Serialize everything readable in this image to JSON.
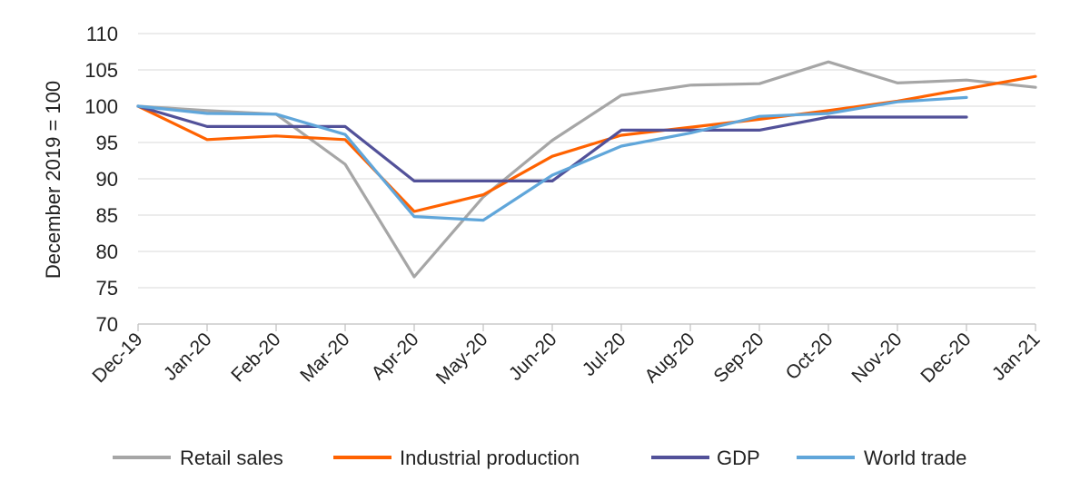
{
  "chart_data": {
    "type": "line",
    "title": "",
    "xlabel": "",
    "ylabel": "December 2019 = 100",
    "ylim": [
      70,
      110
    ],
    "yticks": [
      70,
      75,
      80,
      85,
      90,
      95,
      100,
      105,
      110
    ],
    "grid": true,
    "legend_position": "bottom",
    "categories": [
      "Dec-19",
      "Jan-20",
      "Feb-20",
      "Mar-20",
      "Apr-20",
      "May-20",
      "Jun-20",
      "Jul-20",
      "Aug-20",
      "Sep-20",
      "Oct-20",
      "Nov-20",
      "Dec-20",
      "Jan-21"
    ],
    "series": [
      {
        "name": "Retail sales",
        "color": "#a6a6a6",
        "values": [
          100,
          99.4,
          98.9,
          92,
          76.5,
          87.5,
          95.3,
          101.5,
          102.9,
          103.1,
          106.1,
          103.2,
          103.6,
          102.6
        ]
      },
      {
        "name": "Industrial production",
        "color": "#ff6200",
        "values": [
          100,
          95.4,
          95.9,
          95.4,
          85.5,
          87.8,
          93.1,
          96,
          97.1,
          98.2,
          99.4,
          100.7,
          102.4,
          104.1
        ]
      },
      {
        "name": "GDP",
        "color": "#525199",
        "values": [
          100,
          97.2,
          97.2,
          97.2,
          89.7,
          89.7,
          89.7,
          96.7,
          96.7,
          96.7,
          98.5,
          98.5,
          98.5,
          null
        ]
      },
      {
        "name": "World trade",
        "color": "#60a6da",
        "values": [
          100,
          99,
          98.9,
          96.1,
          84.8,
          84.3,
          90.5,
          94.5,
          96.3,
          98.6,
          99,
          100.6,
          101.2,
          null
        ]
      }
    ]
  }
}
